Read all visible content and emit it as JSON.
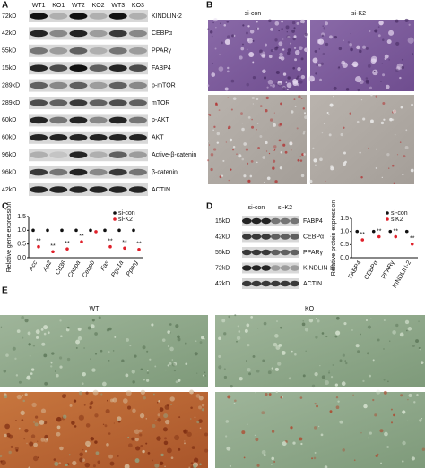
{
  "panels": {
    "A": {
      "label": "A",
      "lanes": [
        "WT1",
        "KO1",
        "WT2",
        "KO2",
        "WT3",
        "KO3"
      ],
      "rows": [
        {
          "kd": "72kD",
          "protein": "KINDLIN-2"
        },
        {
          "kd": "42kD",
          "protein": "CEBPα"
        },
        {
          "kd": "55kD",
          "protein": "PPARγ"
        },
        {
          "kd": "15kD",
          "protein": "FABP4"
        },
        {
          "kd": "289kD",
          "protein": "p-mTOR"
        },
        {
          "kd": "289kD",
          "protein": "mTOR"
        },
        {
          "kd": "60kD",
          "protein": "p-AKT"
        },
        {
          "kd": "60kD",
          "protein": "AKT"
        },
        {
          "kd": "96kD",
          "protein": "Active-β-catenin"
        },
        {
          "kd": "96kD",
          "protein": "β-catenin"
        },
        {
          "kd": "42kD",
          "protein": "ACTIN"
        }
      ]
    },
    "B": {
      "label": "B",
      "columns": [
        "si-con",
        "si-K2"
      ]
    },
    "C": {
      "label": "C"
    },
    "D": {
      "label": "D",
      "header": [
        "si-con",
        "si-K2"
      ],
      "rows": [
        {
          "kd": "15kD",
          "protein": "FABP4"
        },
        {
          "kd": "42kD",
          "protein": "CEBPα"
        },
        {
          "kd": "55kD",
          "protein": "PPARγ"
        },
        {
          "kd": "72kD",
          "protein": "KINDLIN-2"
        },
        {
          "kd": "42kD",
          "protein": "ACTIN"
        }
      ]
    },
    "E": {
      "label": "E",
      "columns": [
        "WT",
        "KO"
      ]
    }
  },
  "chart_data": [
    {
      "type": "scatter",
      "y_label": "Relative gene expression",
      "categories": [
        "Acc",
        "Ap2",
        "Cd36",
        "Cebpa",
        "Cebpb",
        "Fas",
        "Pgc1a",
        "Pparg"
      ],
      "series": [
        {
          "name": "si-con",
          "color": "#111111",
          "values": [
            1.0,
            1.0,
            1.0,
            1.0,
            1.0,
            1.0,
            1.0,
            1.0
          ]
        },
        {
          "name": "si-K2",
          "color": "#e0202a",
          "values": [
            0.4,
            0.22,
            0.32,
            0.58,
            0.95,
            0.4,
            0.35,
            0.3
          ]
        }
      ],
      "annotations": [
        "**",
        "**",
        "**",
        "**",
        null,
        "**",
        "**",
        "**"
      ],
      "ylim": [
        0,
        1.5
      ],
      "yticks": [
        {
          "value": 0,
          "label": "0.0"
        },
        {
          "value": 0.5,
          "label": "0.5"
        },
        {
          "value": 1,
          "label": "1.0"
        },
        {
          "value": 1.5,
          "label": "1.5"
        }
      ]
    },
    {
      "type": "scatter",
      "y_label": "Relative protein expression",
      "categories": [
        "FABP4",
        "CEBPα",
        "PPARγ",
        "KINDLIN-2"
      ],
      "series": [
        {
          "name": "si-con",
          "color": "#111111",
          "values": [
            1.0,
            1.0,
            1.0,
            1.0
          ]
        },
        {
          "name": "siK2",
          "color": "#e0202a",
          "values": [
            0.68,
            0.8,
            0.8,
            0.52
          ]
        }
      ],
      "annotations": [
        "**",
        "**",
        "**",
        "**"
      ],
      "ylim": [
        0,
        1.5
      ],
      "yticks": [
        {
          "value": 0,
          "label": "0.0"
        },
        {
          "value": 0.5,
          "label": "0.5"
        },
        {
          "value": 1,
          "label": "1.0"
        },
        {
          "value": 1.5,
          "label": "1.5"
        }
      ]
    }
  ]
}
